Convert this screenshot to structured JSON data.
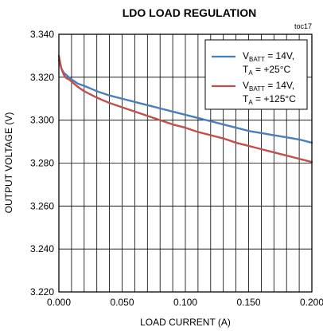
{
  "chart_data": {
    "type": "line",
    "title": "LDO LOAD REGULATION",
    "tag": "toc17",
    "xlabel": "LOAD CURRENT (A)",
    "ylabel": "OUTPUT VOLTAGE (V)",
    "xlim": [
      0.0,
      0.2
    ],
    "ylim": [
      3.22,
      3.34
    ],
    "x_tick_labels": [
      "0.000",
      "0.050",
      "0.100",
      "0.150",
      "0.200"
    ],
    "y_tick_labels": [
      "3.220",
      "3.240",
      "3.260",
      "3.280",
      "3.300",
      "3.320",
      "3.340"
    ],
    "grid": true,
    "legend_position": "top-right",
    "series": [
      {
        "name": "VBATT = 14V, TA = +25°C",
        "legend_line1": {
          "main": "V",
          "sub": "BATT",
          "rest": " = 14V,"
        },
        "legend_line2": {
          "main": "T",
          "sub": "A",
          "rest": " = +25°C"
        },
        "color": "#4a7ebb",
        "x": [
          0.0,
          0.001,
          0.002,
          0.004,
          0.006,
          0.008,
          0.01,
          0.015,
          0.02,
          0.03,
          0.04,
          0.05,
          0.06,
          0.07,
          0.08,
          0.09,
          0.1,
          0.11,
          0.12,
          0.13,
          0.14,
          0.15,
          0.16,
          0.17,
          0.18,
          0.19,
          0.2
        ],
        "y": [
          3.328,
          3.326,
          3.324,
          3.322,
          3.321,
          3.32,
          3.319,
          3.317,
          3.316,
          3.3135,
          3.3115,
          3.31,
          3.3085,
          3.307,
          3.3055,
          3.304,
          3.3025,
          3.301,
          3.2995,
          3.298,
          3.2965,
          3.295,
          3.294,
          3.293,
          3.292,
          3.291,
          3.2895
        ]
      },
      {
        "name": "VBATT = 14V, TA = +125°C",
        "legend_line1": {
          "main": "V",
          "sub": "BATT",
          "rest": " = 14V,"
        },
        "legend_line2": {
          "main": "T",
          "sub": "A",
          "rest": " = +125°C"
        },
        "color": "#c0504d",
        "x": [
          0.0,
          0.001,
          0.002,
          0.004,
          0.006,
          0.008,
          0.01,
          0.015,
          0.02,
          0.03,
          0.04,
          0.05,
          0.06,
          0.07,
          0.08,
          0.09,
          0.1,
          0.11,
          0.12,
          0.13,
          0.14,
          0.15,
          0.16,
          0.17,
          0.18,
          0.19,
          0.2
        ],
        "y": [
          3.33,
          3.327,
          3.324,
          3.321,
          3.3195,
          3.319,
          3.318,
          3.3155,
          3.3135,
          3.3105,
          3.308,
          3.306,
          3.304,
          3.302,
          3.3,
          3.298,
          3.2965,
          3.2945,
          3.293,
          3.2915,
          3.2895,
          3.288,
          3.2865,
          3.285,
          3.2835,
          3.282,
          3.2805
        ]
      }
    ]
  }
}
